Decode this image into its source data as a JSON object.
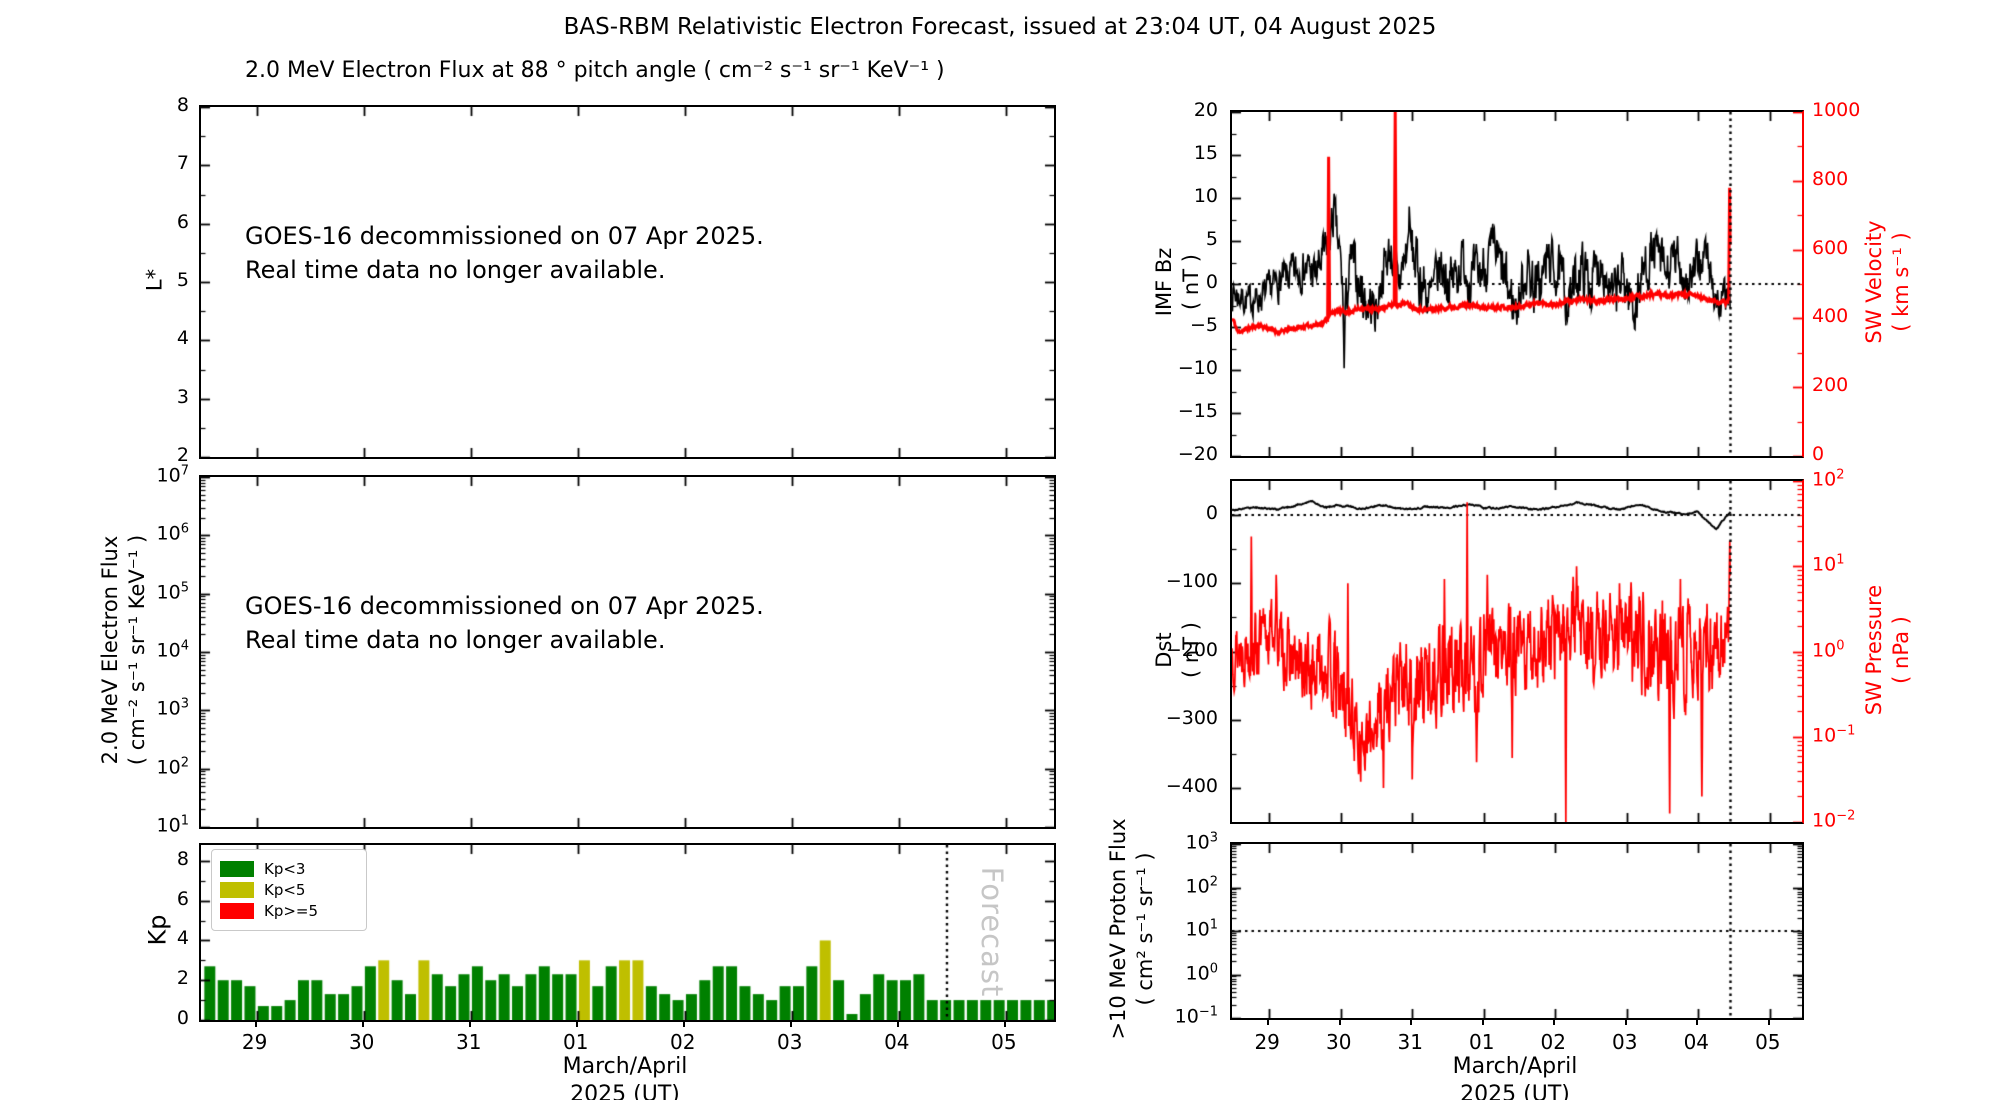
{
  "header": {
    "title": "BAS-RBM Relativistic Electron Forecast, issued at 23:04 UT, 04 August 2025",
    "left_subtitle": "2.0 MeV Electron Flux at 88 ° pitch angle ( cm⁻² s⁻¹ sr⁻¹ KeV⁻¹ )"
  },
  "xaxis": {
    "label_line1": "March/April",
    "label_line2": "2025 (UT)",
    "range_days": [
      28.48,
      36.45
    ],
    "forecast_start_day": 35.45,
    "ticks": [
      [
        29,
        "29"
      ],
      [
        30,
        "30"
      ],
      [
        31,
        "31"
      ],
      [
        32,
        "01"
      ],
      [
        33,
        "02"
      ],
      [
        34,
        "03"
      ],
      [
        35,
        "04"
      ],
      [
        36,
        "05"
      ]
    ]
  },
  "chart_data": [
    {
      "id": "lstar",
      "type": "empty",
      "ylabel": "L*",
      "ylim": [
        2,
        8
      ],
      "yticks": [
        [
          8,
          "8"
        ],
        [
          7,
          "7"
        ],
        [
          6,
          "6"
        ],
        [
          5,
          "5"
        ],
        [
          4,
          "4"
        ],
        [
          3,
          "3"
        ],
        [
          2,
          "2"
        ]
      ],
      "yminor": [
        2.5,
        3.5,
        4.5,
        5.5,
        6.5,
        7.5
      ],
      "annotation": [
        "GOES-16 decommissioned on 07 Apr 2025.",
        "Real time data no longer available."
      ]
    },
    {
      "id": "eflux",
      "type": "empty",
      "ylabel": "2.0 MeV Electron Flux\n( cm⁻² s⁻¹ sr⁻¹ KeV⁻¹ )",
      "ylim_exp": [
        1,
        7
      ],
      "yticks_exp": [
        7,
        6,
        5,
        4,
        3,
        2,
        1
      ],
      "annotation": [
        "GOES-16 decommissioned on 07 Apr 2025.",
        "Real time data no longer available."
      ]
    },
    {
      "id": "kp",
      "type": "bar",
      "ylabel": "Kp",
      "ylim": [
        0,
        8.8
      ],
      "yticks": [
        [
          8,
          "8"
        ],
        [
          6,
          "6"
        ],
        [
          4,
          "4"
        ],
        [
          2,
          "2"
        ],
        [
          0,
          "0"
        ]
      ],
      "yminor": [
        1,
        3,
        5,
        7
      ],
      "legend": [
        {
          "label": "Kp<3",
          "color": "#008000"
        },
        {
          "label": "Kp<5",
          "color": "#bfbf00"
        },
        {
          "label": "Kp>=5",
          "color": "#ff0000"
        }
      ],
      "forecast_label": "Forecast",
      "bar_start_day": 28.5,
      "bar_step_days": 0.125,
      "bar_values": [
        2.7,
        2.0,
        2.0,
        1.7,
        0.7,
        0.7,
        1.0,
        2.0,
        2.0,
        1.3,
        1.3,
        1.7,
        2.7,
        3.0,
        2.0,
        1.3,
        3.0,
        2.3,
        1.7,
        2.3,
        2.7,
        2.0,
        2.3,
        1.7,
        2.3,
        2.7,
        2.3,
        2.3,
        3.0,
        1.7,
        2.7,
        3.0,
        3.0,
        1.7,
        1.3,
        1.0,
        1.3,
        2.0,
        2.7,
        2.7,
        1.7,
        1.3,
        1.0,
        1.7,
        1.7,
        2.7,
        4.0,
        2.0,
        0.3,
        1.3,
        2.3,
        2.0,
        2.0,
        2.3,
        1.0,
        1.0
      ],
      "forecast_values": [
        1.0,
        1.0,
        1.0,
        1.0,
        1.0,
        1.0,
        1.0,
        1.0
      ],
      "thresholds": {
        "green_below": 3,
        "yellow_below": 5
      }
    },
    {
      "id": "imf",
      "type": "line",
      "ylabel": "IMF Bz\n( nT )",
      "ylim": [
        -20,
        20
      ],
      "yticks": [
        [
          20,
          "20"
        ],
        [
          15,
          "15"
        ],
        [
          10,
          "10"
        ],
        [
          5,
          "5"
        ],
        [
          0,
          "0"
        ],
        [
          -5,
          "−5"
        ],
        [
          -10,
          "−10"
        ],
        [
          -15,
          "−15"
        ],
        [
          -20,
          "−20"
        ]
      ],
      "yminor": [
        17.5,
        12.5,
        7.5,
        2.5,
        -2.5,
        -7.5,
        -12.5,
        -17.5
      ],
      "right_ylabel": "SW Velocity\n( km s⁻¹ )",
      "right_ylim": [
        0,
        1000
      ],
      "right_yticks": [
        [
          1000,
          "1000"
        ],
        [
          800,
          "800"
        ],
        [
          600,
          "600"
        ],
        [
          400,
          "400"
        ],
        [
          200,
          "200"
        ],
        [
          0,
          "0"
        ]
      ],
      "right_yminor": [
        100,
        300,
        500,
        700,
        900
      ],
      "hline_bz": 0,
      "colors": {
        "bz": "#000000",
        "velocity": "#ff0000"
      },
      "bz_anchors": [
        [
          28.5,
          -1,
          2.2
        ],
        [
          28.7,
          -2,
          2
        ],
        [
          28.9,
          -1.5,
          2
        ],
        [
          29.1,
          0,
          2.2
        ],
        [
          29.3,
          1,
          2.5
        ],
        [
          29.5,
          2,
          2.5
        ],
        [
          29.65,
          1,
          3
        ],
        [
          29.8,
          4,
          3
        ],
        [
          29.91,
          8,
          2.5
        ],
        [
          30.0,
          2,
          3.5
        ],
        [
          30.05,
          -4,
          3
        ],
        [
          30.15,
          3,
          3
        ],
        [
          30.25,
          0,
          3.5
        ],
        [
          30.35,
          -2,
          3.5
        ],
        [
          30.5,
          -3,
          3
        ],
        [
          30.6,
          2,
          3
        ],
        [
          30.7,
          4,
          3
        ],
        [
          30.8,
          0,
          3.5
        ],
        [
          30.96,
          5,
          3.5
        ],
        [
          31.1,
          1,
          4
        ],
        [
          31.25,
          -2,
          3.5
        ],
        [
          31.4,
          2,
          3.5
        ],
        [
          31.55,
          0,
          4
        ],
        [
          31.7,
          3,
          3
        ],
        [
          31.85,
          0,
          4
        ],
        [
          32.0,
          2,
          3.5
        ],
        [
          32.15,
          4,
          3
        ],
        [
          32.3,
          0,
          4
        ],
        [
          32.45,
          -3,
          3.5
        ],
        [
          32.6,
          2,
          3.5
        ],
        [
          32.75,
          -1,
          4
        ],
        [
          32.9,
          3,
          3
        ],
        [
          33.05,
          1,
          3.5
        ],
        [
          33.2,
          -2,
          3.5
        ],
        [
          33.35,
          2,
          3.5
        ],
        [
          33.5,
          0,
          4
        ],
        [
          33.65,
          3,
          3
        ],
        [
          33.8,
          -2,
          3.5
        ],
        [
          33.95,
          1,
          3.5
        ],
        [
          34.1,
          -3,
          3.5
        ],
        [
          34.25,
          2,
          3.5
        ],
        [
          34.4,
          4,
          3
        ],
        [
          34.55,
          1,
          3.5
        ],
        [
          34.7,
          3,
          3
        ],
        [
          34.85,
          0,
          3.5
        ],
        [
          35.0,
          2,
          3
        ],
        [
          35.1,
          4,
          2.5
        ],
        [
          35.2,
          0,
          3
        ],
        [
          35.3,
          -3,
          2.5
        ],
        [
          35.38,
          -1,
          2.5
        ],
        [
          35.45,
          -3,
          2
        ]
      ],
      "bz_spikes": [
        [
          29.91,
          10.5
        ],
        [
          30.05,
          -9.8
        ],
        [
          30.96,
          9.0
        ]
      ],
      "velocity_anchors": [
        [
          28.5,
          395,
          8
        ],
        [
          28.56,
          360,
          8
        ],
        [
          28.7,
          370,
          8
        ],
        [
          28.85,
          380,
          8
        ],
        [
          29.0,
          370,
          8
        ],
        [
          29.15,
          360,
          8
        ],
        [
          29.3,
          370,
          8
        ],
        [
          29.45,
          375,
          8
        ],
        [
          29.6,
          380,
          8
        ],
        [
          29.75,
          385,
          8
        ],
        [
          29.9,
          420,
          9
        ],
        [
          30.1,
          420,
          9
        ],
        [
          30.3,
          430,
          9
        ],
        [
          30.5,
          425,
          9
        ],
        [
          30.62,
          432,
          9
        ],
        [
          30.76,
          440,
          9
        ],
        [
          30.9,
          445,
          9
        ],
        [
          31.05,
          430,
          9
        ],
        [
          31.2,
          425,
          9
        ],
        [
          31.4,
          430,
          9
        ],
        [
          31.6,
          435,
          9
        ],
        [
          31.8,
          440,
          9
        ],
        [
          32.0,
          430,
          9
        ],
        [
          32.2,
          435,
          9
        ],
        [
          32.4,
          430,
          9
        ],
        [
          32.6,
          440,
          9
        ],
        [
          32.8,
          445,
          9
        ],
        [
          33.0,
          440,
          9
        ],
        [
          33.2,
          450,
          9
        ],
        [
          33.4,
          455,
          9
        ],
        [
          33.6,
          450,
          9
        ],
        [
          33.8,
          455,
          9
        ],
        [
          34.0,
          460,
          9
        ],
        [
          34.2,
          465,
          9
        ],
        [
          34.4,
          470,
          9
        ],
        [
          34.6,
          465,
          9
        ],
        [
          34.8,
          470,
          9
        ],
        [
          35.0,
          465,
          9
        ],
        [
          35.1,
          455,
          9
        ],
        [
          35.25,
          450,
          9
        ],
        [
          35.38,
          445,
          8
        ],
        [
          35.45,
          450,
          8
        ]
      ],
      "velocity_spikes": [
        [
          29.83,
          870
        ],
        [
          30.76,
          1050
        ],
        [
          35.44,
          780
        ]
      ]
    },
    {
      "id": "dst",
      "type": "line",
      "ylabel": "Dst\n( nT )",
      "ylim": [
        -450,
        50
      ],
      "yticks": [
        [
          0,
          "0"
        ],
        [
          -100,
          "−100"
        ],
        [
          -200,
          "−200"
        ],
        [
          -300,
          "−300"
        ],
        [
          -400,
          "−400"
        ]
      ],
      "yminor": [
        -50,
        -150,
        -250,
        -350
      ],
      "right_ylabel": "SW Pressure\n( nPa )",
      "right_ylim_exp": [
        -2,
        2
      ],
      "right_yticks_exp": [
        2,
        1,
        0,
        -1,
        -2
      ],
      "hline_dst": 0,
      "colors": {
        "dst": "#000000",
        "pressure": "#ff0000"
      },
      "dst_anchors": [
        [
          28.5,
          8,
          5
        ],
        [
          28.8,
          12,
          5
        ],
        [
          29.1,
          8,
          5
        ],
        [
          29.4,
          15,
          5
        ],
        [
          29.6,
          20,
          4
        ],
        [
          29.8,
          12,
          5
        ],
        [
          30.0,
          15,
          5
        ],
        [
          30.3,
          10,
          5
        ],
        [
          30.6,
          15,
          5
        ],
        [
          30.9,
          8,
          5
        ],
        [
          31.2,
          12,
          5
        ],
        [
          31.5,
          10,
          5
        ],
        [
          31.8,
          14,
          5
        ],
        [
          32.1,
          10,
          5
        ],
        [
          32.4,
          12,
          5
        ],
        [
          32.7,
          8,
          5
        ],
        [
          33.0,
          10,
          5
        ],
        [
          33.3,
          18,
          4
        ],
        [
          33.6,
          12,
          5
        ],
        [
          33.9,
          8,
          4
        ],
        [
          34.2,
          15,
          4
        ],
        [
          34.5,
          5,
          4
        ],
        [
          34.8,
          2,
          4
        ],
        [
          35.0,
          4,
          4
        ],
        [
          35.1,
          -8,
          5
        ],
        [
          35.25,
          -22,
          4
        ],
        [
          35.35,
          -8,
          5
        ],
        [
          35.45,
          5,
          3
        ]
      ],
      "pressure_log_anchors": [
        [
          28.5,
          0.0,
          0.3
        ],
        [
          28.7,
          0.05,
          0.35
        ],
        [
          28.9,
          0.1,
          0.35
        ],
        [
          29.05,
          0.3,
          0.3
        ],
        [
          29.2,
          0.0,
          0.35
        ],
        [
          29.4,
          -0.2,
          0.35
        ],
        [
          29.6,
          -0.25,
          0.4
        ],
        [
          29.8,
          -0.1,
          0.4
        ],
        [
          29.95,
          -0.4,
          0.45
        ],
        [
          30.1,
          -0.7,
          0.45
        ],
        [
          30.25,
          -0.95,
          0.4
        ],
        [
          30.35,
          -1.2,
          0.35
        ],
        [
          30.45,
          -0.85,
          0.4
        ],
        [
          30.6,
          -0.6,
          0.45
        ],
        [
          30.75,
          -0.45,
          0.45
        ],
        [
          30.9,
          -0.4,
          0.5
        ],
        [
          31.05,
          -0.5,
          0.5
        ],
        [
          31.2,
          -0.35,
          0.5
        ],
        [
          31.4,
          -0.15,
          0.5
        ],
        [
          31.6,
          -0.25,
          0.5
        ],
        [
          31.9,
          -0.2,
          0.5
        ],
        [
          32.05,
          0.1,
          0.45
        ],
        [
          32.2,
          0.0,
          0.45
        ],
        [
          32.4,
          -0.1,
          0.5
        ],
        [
          32.6,
          0.0,
          0.45
        ],
        [
          32.8,
          0.1,
          0.45
        ],
        [
          33.0,
          0.15,
          0.45
        ],
        [
          33.3,
          0.4,
          0.4
        ],
        [
          33.5,
          0.1,
          0.45
        ],
        [
          33.7,
          0.2,
          0.45
        ],
        [
          33.9,
          0.25,
          0.4
        ],
        [
          34.1,
          0.1,
          0.5
        ],
        [
          34.3,
          0.15,
          0.5
        ],
        [
          34.5,
          -0.05,
          0.55
        ],
        [
          34.75,
          0.0,
          0.5
        ],
        [
          34.9,
          -0.1,
          0.55
        ],
        [
          35.1,
          -0.05,
          0.5
        ],
        [
          35.25,
          0.05,
          0.45
        ],
        [
          35.4,
          0.3,
          0.35
        ],
        [
          35.45,
          0.45,
          0.3
        ]
      ],
      "pressure_log_spikes": [
        [
          28.75,
          1.35
        ],
        [
          29.1,
          0.9
        ],
        [
          30.1,
          0.8
        ],
        [
          31.45,
          0.85
        ],
        [
          31.77,
          1.75
        ],
        [
          32.05,
          0.9
        ],
        [
          33.3,
          1.0
        ],
        [
          33.9,
          0.8
        ],
        [
          34.75,
          0.85
        ],
        [
          35.44,
          1.3
        ],
        [
          30.6,
          -1.6
        ],
        [
          31.0,
          -1.5
        ],
        [
          31.9,
          -1.3
        ],
        [
          32.4,
          -1.25
        ],
        [
          33.15,
          -2.0
        ],
        [
          34.6,
          -1.9
        ],
        [
          35.05,
          -1.7
        ]
      ]
    },
    {
      "id": "proton",
      "type": "empty",
      "ylabel": ">10 MeV Proton Flux\n( cm² s⁻¹ sr⁻¹ )",
      "ylim_exp": [
        -1,
        3
      ],
      "yticks_exp": [
        3,
        2,
        1,
        0,
        -1
      ],
      "hline_exp": 1
    }
  ]
}
